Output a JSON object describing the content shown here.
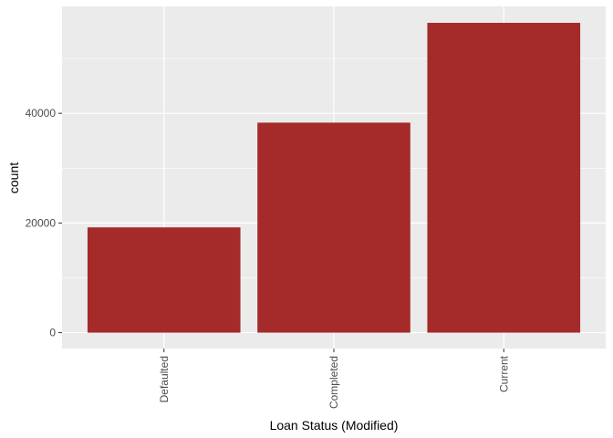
{
  "chart_data": {
    "type": "bar",
    "categories": [
      "Defaulted",
      "Completed",
      "Current"
    ],
    "values": [
      19200,
      38300,
      56500
    ],
    "xlabel": "Loan Status (Modified)",
    "ylabel": "count",
    "ylim": [
      -2900,
      59500
    ],
    "yticks": [
      0,
      20000,
      40000
    ],
    "ytick_labels": [
      "0",
      "20000",
      "40000"
    ],
    "bar_color": "#a52a2a",
    "panel_color": "#ebebeb",
    "grid": true,
    "legend": "none"
  }
}
